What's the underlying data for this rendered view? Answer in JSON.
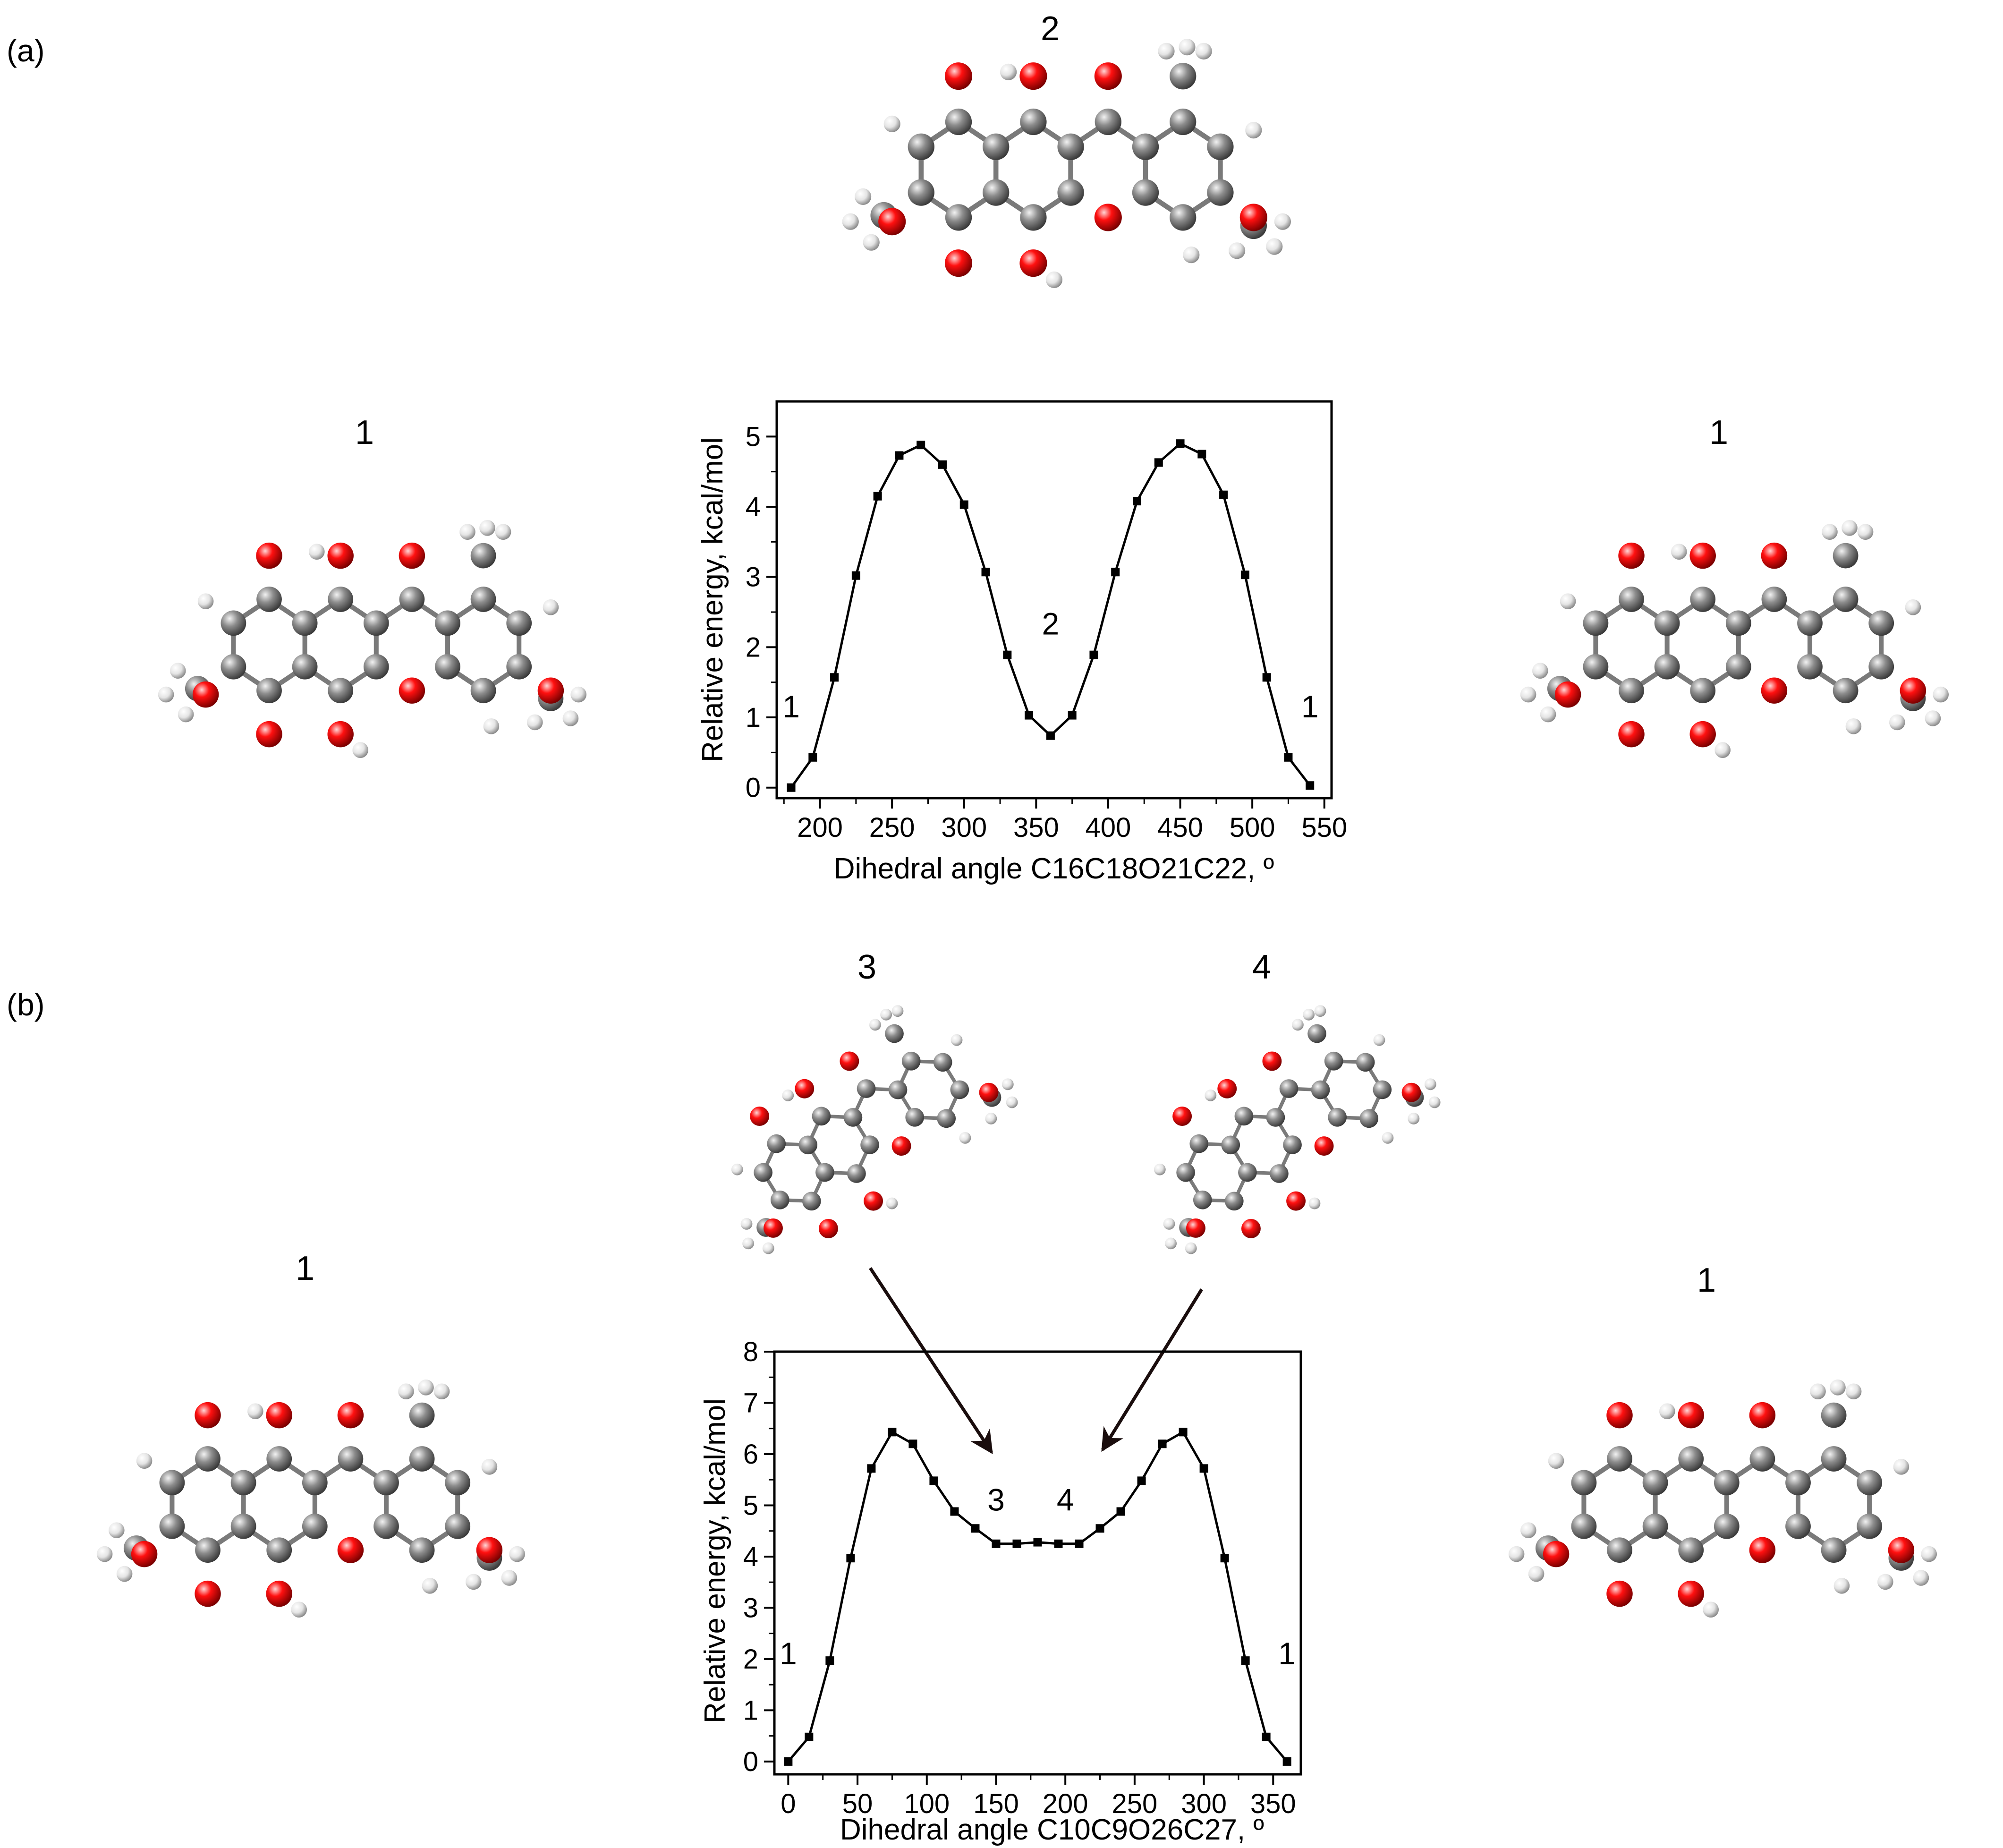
{
  "panels": [
    {
      "id": "a",
      "label": "(a)"
    },
    {
      "id": "b",
      "label": "(b)"
    }
  ],
  "arrow_color": "#1a0d0d",
  "atom_colors": {
    "carbon": "#808080",
    "oxygen": "#e60000",
    "hydrogen": "#e6e6e6"
  },
  "molecules": [
    {
      "panel": "a",
      "label": "2",
      "view": "planar-alt"
    },
    {
      "panel": "a",
      "label": "1",
      "view": "planar"
    },
    {
      "panel": "a",
      "label": "1",
      "view": "planar"
    },
    {
      "panel": "b",
      "label": "3",
      "view": "twisted"
    },
    {
      "panel": "b",
      "label": "4",
      "view": "twisted"
    },
    {
      "panel": "b",
      "label": "1",
      "view": "planar"
    },
    {
      "panel": "b",
      "label": "1",
      "view": "planar"
    }
  ],
  "chart_data": [
    {
      "type": "line",
      "panel": "a",
      "title": "",
      "xlabel": "Dihedral angle C16C18O21C22, º",
      "ylabel": "Relative energy, kcal/mol",
      "xlim": [
        170,
        555
      ],
      "ylim": [
        -0.15,
        5.5
      ],
      "xticks": [
        200,
        250,
        300,
        350,
        400,
        450,
        500,
        550
      ],
      "yticks": [
        0,
        1,
        2,
        3,
        4,
        5
      ],
      "grid": false,
      "marker": "square",
      "series": [
        {
          "x": [
            180,
            195,
            210,
            225,
            240,
            255,
            270,
            285,
            300,
            315,
            330,
            345,
            360,
            375,
            390,
            405,
            420,
            435,
            450,
            465,
            480,
            495,
            510,
            525,
            540
          ],
          "y": [
            0.0,
            0.43,
            1.57,
            3.02,
            4.15,
            4.73,
            4.88,
            4.6,
            4.03,
            3.07,
            1.89,
            1.03,
            0.74,
            1.03,
            1.89,
            3.07,
            4.08,
            4.63,
            4.9,
            4.75,
            4.17,
            3.03,
            1.57,
            0.43,
            0.03
          ]
        }
      ],
      "annotations": [
        {
          "text": "1",
          "x": 180,
          "y": 1.0
        },
        {
          "text": "2",
          "x": 360,
          "y": 2.18
        },
        {
          "text": "1",
          "x": 540,
          "y": 1.0
        }
      ]
    },
    {
      "type": "line",
      "panel": "b",
      "title": "",
      "xlabel": "Dihedral angle C10C9O26C27, º",
      "ylabel": "Relative energy, kcal/mol",
      "xlim": [
        -10,
        370
      ],
      "ylim": [
        -0.25,
        8.0
      ],
      "xticks": [
        0,
        50,
        100,
        150,
        200,
        250,
        300,
        350
      ],
      "yticks": [
        0,
        1,
        2,
        3,
        4,
        5,
        6,
        7,
        8
      ],
      "grid": false,
      "marker": "square",
      "series": [
        {
          "x": [
            0,
            15,
            30,
            45,
            60,
            75,
            90,
            105,
            120,
            135,
            150,
            165,
            180,
            195,
            210,
            225,
            240,
            255,
            270,
            285,
            300,
            315,
            330,
            345,
            360
          ],
          "y": [
            0.0,
            0.48,
            1.97,
            3.97,
            5.72,
            6.43,
            6.2,
            5.48,
            4.88,
            4.55,
            4.25,
            4.25,
            4.28,
            4.25,
            4.25,
            4.55,
            4.88,
            5.48,
            6.2,
            6.43,
            5.72,
            3.97,
            1.97,
            0.48,
            0.0
          ]
        }
      ],
      "annotations": [
        {
          "text": "1",
          "x": 0,
          "y": 1.9
        },
        {
          "text": "3",
          "x": 150,
          "y": 4.9
        },
        {
          "text": "4",
          "x": 200,
          "y": 4.9
        },
        {
          "text": "1",
          "x": 360,
          "y": 1.9
        }
      ]
    }
  ]
}
